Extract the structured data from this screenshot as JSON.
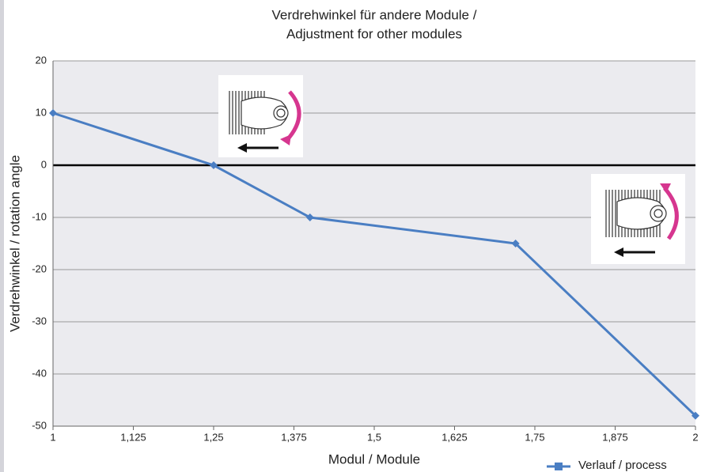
{
  "chart_data": {
    "type": "line",
    "title": [
      "Verdrehwinkel für andere Module /",
      "Adjustment for other modules"
    ],
    "x_label": "Modul / Module",
    "y_label": "Verdrehwinkel / rotation angle",
    "x": [
      1,
      1.25,
      1.4,
      1.72,
      2
    ],
    "series": [
      {
        "name": "Verlauf / process",
        "color": "#4a7ec3",
        "values": [
          10,
          0,
          -10,
          -15,
          -48
        ]
      }
    ],
    "xlim": [
      1,
      2
    ],
    "xticks": [
      1,
      {
        "value": 1.125,
        "label": "1,125"
      },
      {
        "value": 1.25,
        "label": "1,25"
      },
      {
        "value": 1.375,
        "label": "1,375"
      },
      {
        "value": 1.5,
        "label": "1,5"
      },
      {
        "value": 1.625,
        "label": "1,625"
      },
      {
        "value": 1.75,
        "label": "1,75"
      },
      {
        "value": 1.875,
        "label": "1,875"
      },
      2
    ],
    "ylim": [
      -50,
      20
    ],
    "yticks": [
      20,
      10,
      0,
      -10,
      -20,
      -30,
      -40,
      -50
    ],
    "grid": true
  }
}
